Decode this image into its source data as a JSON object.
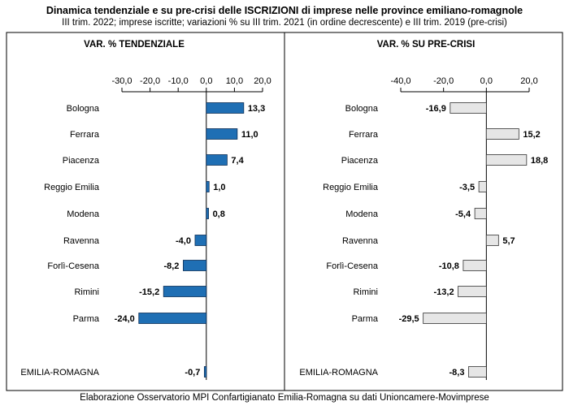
{
  "title": "Dinamica tendenziale e su pre-crisi delle ISCRIZIONI di imprese nelle province emiliano-romagnole",
  "subtitle": "III trim. 2022; imprese iscritte; variazioni % su III trim. 2021 (in ordine decrescente) e III trim. 2019 (pre-crisi)",
  "footer": "Elaborazione Osservatorio MPI Confartigianato Emilia-Romagna su dati Unioncamere-Movimprese",
  "chart_data": [
    {
      "type": "bar",
      "orientation": "horizontal",
      "title": "VAR. % TENDENZIALE",
      "categories": [
        "Bologna",
        "Ferrara",
        "Piacenza",
        "Reggio Emilia",
        "Modena",
        "Ravenna",
        "Forlì-Cesena",
        "Rimini",
        "Parma",
        "EMILIA-ROMAGNA"
      ],
      "values": [
        13.3,
        11.0,
        7.4,
        1.0,
        0.8,
        -4.0,
        -8.2,
        -15.2,
        -24.0,
        -0.7
      ],
      "value_labels": [
        "13,3",
        "11,0",
        "7,4",
        "1,0",
        "0,8",
        "-4,0",
        "-8,2",
        "-15,2",
        "-24,0",
        "-0,7"
      ],
      "xlim": [
        -30,
        20
      ],
      "ticks": [
        -30,
        -20,
        -10,
        0,
        10,
        20
      ],
      "tick_labels": [
        "-30,0",
        "-20,0",
        "-10,0",
        "0,0",
        "10,0",
        "20,0"
      ],
      "bar_color": "#1f6fb4",
      "bar_stroke": "#0d2f57"
    },
    {
      "type": "bar",
      "orientation": "horizontal",
      "title": "VAR. % SU PRE-CRISI",
      "categories": [
        "Bologna",
        "Ferrara",
        "Piacenza",
        "Reggio Emilia",
        "Modena",
        "Ravenna",
        "Forlì-Cesena",
        "Rimini",
        "Parma",
        "EMILIA-ROMAGNA"
      ],
      "values": [
        -16.9,
        15.2,
        18.8,
        -3.5,
        -5.4,
        5.7,
        -10.8,
        -13.2,
        -29.5,
        -8.3
      ],
      "value_labels": [
        "-16,9",
        "15,2",
        "18,8",
        "-3,5",
        "-5,4",
        "5,7",
        "-10,8",
        "-13,2",
        "-29,5",
        "-8,3"
      ],
      "xlim": [
        -40,
        20
      ],
      "ticks": [
        -40,
        -20,
        0,
        20
      ],
      "tick_labels": [
        "-40,0",
        "-20,0",
        "0,0",
        "20,0"
      ],
      "bar_color": "#e6e6e6",
      "bar_stroke": "#333333"
    }
  ]
}
